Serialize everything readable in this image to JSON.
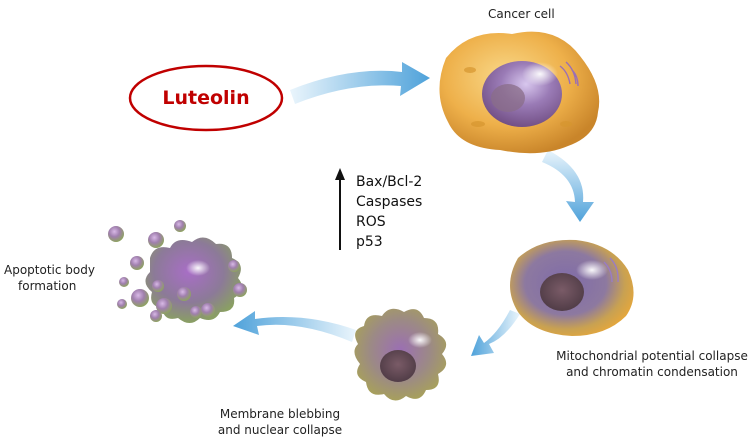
{
  "diagram": {
    "inducer": {
      "label": "Luteolin",
      "color": "#c00000"
    },
    "stages": [
      {
        "id": "cancer-cell",
        "label": "Cancer cell"
      },
      {
        "id": "mito-collapse",
        "label_lines": [
          "Mitochondrial potential collapse",
          "and chromatin condensation"
        ]
      },
      {
        "id": "blebbing",
        "label_lines": [
          "Membrane blebbing",
          "and nuclear collapse"
        ]
      },
      {
        "id": "apoptotic-body",
        "label_lines": [
          "Apoptotic body",
          "formation"
        ]
      }
    ],
    "upregulated_factors": {
      "direction": "up",
      "items": [
        "Bax/Bcl-2",
        "Caspases",
        "ROS",
        "p53"
      ]
    },
    "colors": {
      "arrow_dark": "#5aa9de",
      "arrow_light": "#dceefa",
      "cell_orange": "#e8a63c",
      "cell_purple": "#8f63a8",
      "cell_olive": "#a9a957"
    }
  }
}
